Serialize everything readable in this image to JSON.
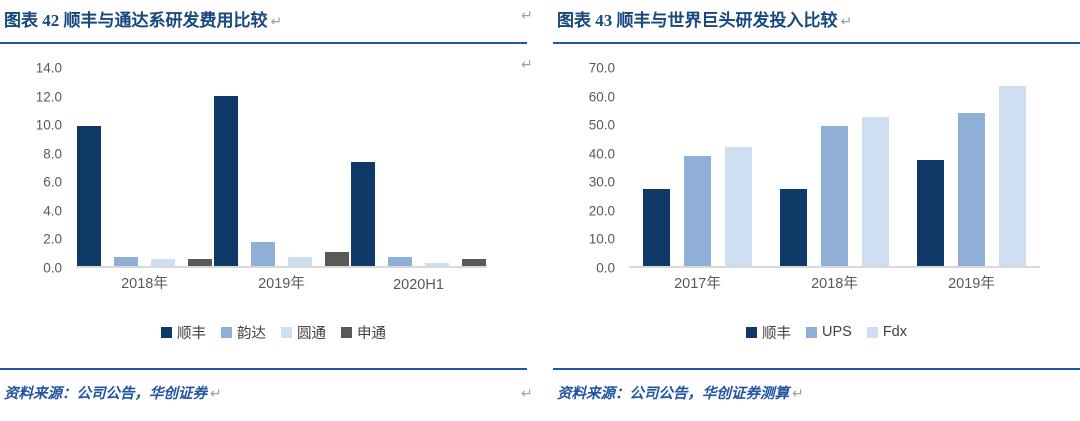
{
  "return_mark": "↵",
  "colors": {
    "title_blue": "#17477e",
    "rule_blue": "#2155a3",
    "axis_text": "#595959",
    "baseline": "#d9d9d9",
    "navy": "#0f3a68",
    "medium_blue": "#8fafd7",
    "light_blue": "#cfdff2",
    "dark_gray": "#595959"
  },
  "panels": [
    {
      "title": "图表 42  顺丰与通达系研发费用比较",
      "source": "资料来源：公司公告，华创证券"
    },
    {
      "title": "图表 43  顺丰与世界巨头研发投入比较",
      "source": "资料来源：公司公告，华创证券测算"
    }
  ],
  "chart_data": [
    {
      "type": "bar",
      "title": "图表 42  顺丰与通达系研发费用比较",
      "categories": [
        "2018年",
        "2019年",
        "2020H1"
      ],
      "series": [
        {
          "name": "顺丰",
          "color": "#0f3a68",
          "values": [
            9.8,
            11.9,
            7.3
          ]
        },
        {
          "name": "韵达",
          "color": "#8fafd7",
          "values": [
            0.6,
            1.7,
            0.6
          ]
        },
        {
          "name": "圆通",
          "color": "#cfdff2",
          "values": [
            0.5,
            0.6,
            0.2
          ]
        },
        {
          "name": "申通",
          "color": "#595959",
          "values": [
            0.5,
            1.0,
            0.5
          ]
        }
      ],
      "ylim": [
        0,
        14
      ],
      "ytick_step": 2,
      "ytick_labels": [
        "0.0",
        "2.0",
        "4.0",
        "6.0",
        "8.0",
        "10.0",
        "12.0",
        "14.0"
      ],
      "xlabel": "",
      "ylabel": "",
      "grid": false,
      "legend_position": "bottom"
    },
    {
      "type": "bar",
      "title": "图表 43  顺丰与世界巨头研发投入比较",
      "categories": [
        "2017年",
        "2018年",
        "2019年"
      ],
      "series": [
        {
          "name": "顺丰",
          "color": "#0f3a68",
          "values": [
            27.0,
            27.0,
            37.0
          ]
        },
        {
          "name": "UPS",
          "color": "#8fafd7",
          "values": [
            38.5,
            49.0,
            53.5
          ]
        },
        {
          "name": "Fdx",
          "color": "#cfdff2",
          "values": [
            41.5,
            52.0,
            63.0
          ]
        }
      ],
      "ylim": [
        0,
        70
      ],
      "ytick_step": 10,
      "ytick_labels": [
        "0.0",
        "10.0",
        "20.0",
        "30.0",
        "40.0",
        "50.0",
        "60.0",
        "70.0"
      ],
      "xlabel": "",
      "ylabel": "",
      "grid": false,
      "legend_position": "bottom"
    }
  ]
}
